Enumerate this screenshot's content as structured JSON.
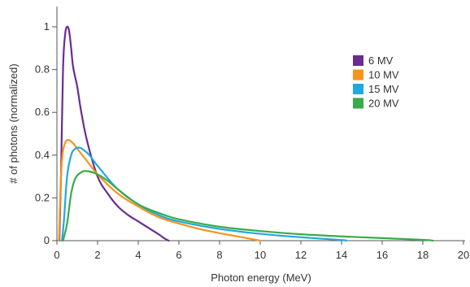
{
  "chart_data": {
    "type": "line",
    "title": "",
    "xlabel": "Photon energy (MeV)",
    "ylabel": "# of photons (normalized)",
    "xlim": [
      0,
      20
    ],
    "ylim": [
      0,
      1.1
    ],
    "xticks": [
      0,
      2,
      4,
      6,
      8,
      10,
      12,
      14,
      16,
      18,
      20
    ],
    "yticks": [
      0,
      0.2,
      0.4,
      0.6,
      0.8,
      1
    ],
    "ytick_labels": [
      "0",
      "0.2",
      "0.4",
      "0.6",
      "0.8",
      "1"
    ],
    "grid": false,
    "legend_position": "top-right",
    "series": [
      {
        "name": "6 MV",
        "color": "#6a2c91",
        "x": [
          0.12,
          0.2,
          0.3,
          0.4,
          0.5,
          0.6,
          0.7,
          0.8,
          1.0,
          1.2,
          1.5,
          2.0,
          2.5,
          3.0,
          3.5,
          4.0,
          4.5,
          5.0,
          5.3,
          5.5
        ],
        "y": [
          0,
          0.3,
          0.8,
          0.96,
          1.0,
          0.98,
          0.9,
          0.81,
          0.72,
          0.6,
          0.46,
          0.3,
          0.22,
          0.16,
          0.12,
          0.09,
          0.06,
          0.03,
          0.01,
          0
        ]
      },
      {
        "name": "10 MV",
        "color": "#f7941d",
        "x": [
          0.1,
          0.2,
          0.3,
          0.45,
          0.6,
          0.8,
          1.0,
          1.5,
          2.0,
          3.0,
          4.0,
          5.0,
          6.0,
          7.0,
          8.0,
          9.0,
          10.0
        ],
        "y": [
          0,
          0.3,
          0.42,
          0.465,
          0.47,
          0.455,
          0.43,
          0.37,
          0.31,
          0.22,
          0.16,
          0.11,
          0.08,
          0.055,
          0.035,
          0.018,
          0
        ]
      },
      {
        "name": "15 MV",
        "color": "#1fa9e1",
        "x": [
          0.25,
          0.35,
          0.5,
          0.7,
          0.9,
          1.1,
          1.3,
          1.6,
          2.0,
          3.0,
          4.0,
          5.0,
          6.0,
          8.0,
          10.0,
          12.0,
          14.0,
          14.2
        ],
        "y": [
          0,
          0.1,
          0.3,
          0.4,
          0.43,
          0.435,
          0.425,
          0.4,
          0.35,
          0.24,
          0.17,
          0.12,
          0.09,
          0.055,
          0.032,
          0.016,
          0.003,
          0
        ]
      },
      {
        "name": "20 MV",
        "color": "#3aaa4a",
        "x": [
          0.3,
          0.5,
          0.7,
          0.9,
          1.2,
          1.5,
          2.0,
          2.5,
          3.0,
          4.0,
          5.0,
          6.0,
          8.0,
          10.0,
          12.0,
          14.0,
          16.0,
          18.0,
          18.5
        ],
        "y": [
          0,
          0.08,
          0.22,
          0.29,
          0.32,
          0.325,
          0.31,
          0.28,
          0.24,
          0.17,
          0.13,
          0.1,
          0.065,
          0.045,
          0.03,
          0.02,
          0.012,
          0.004,
          0
        ]
      }
    ]
  }
}
